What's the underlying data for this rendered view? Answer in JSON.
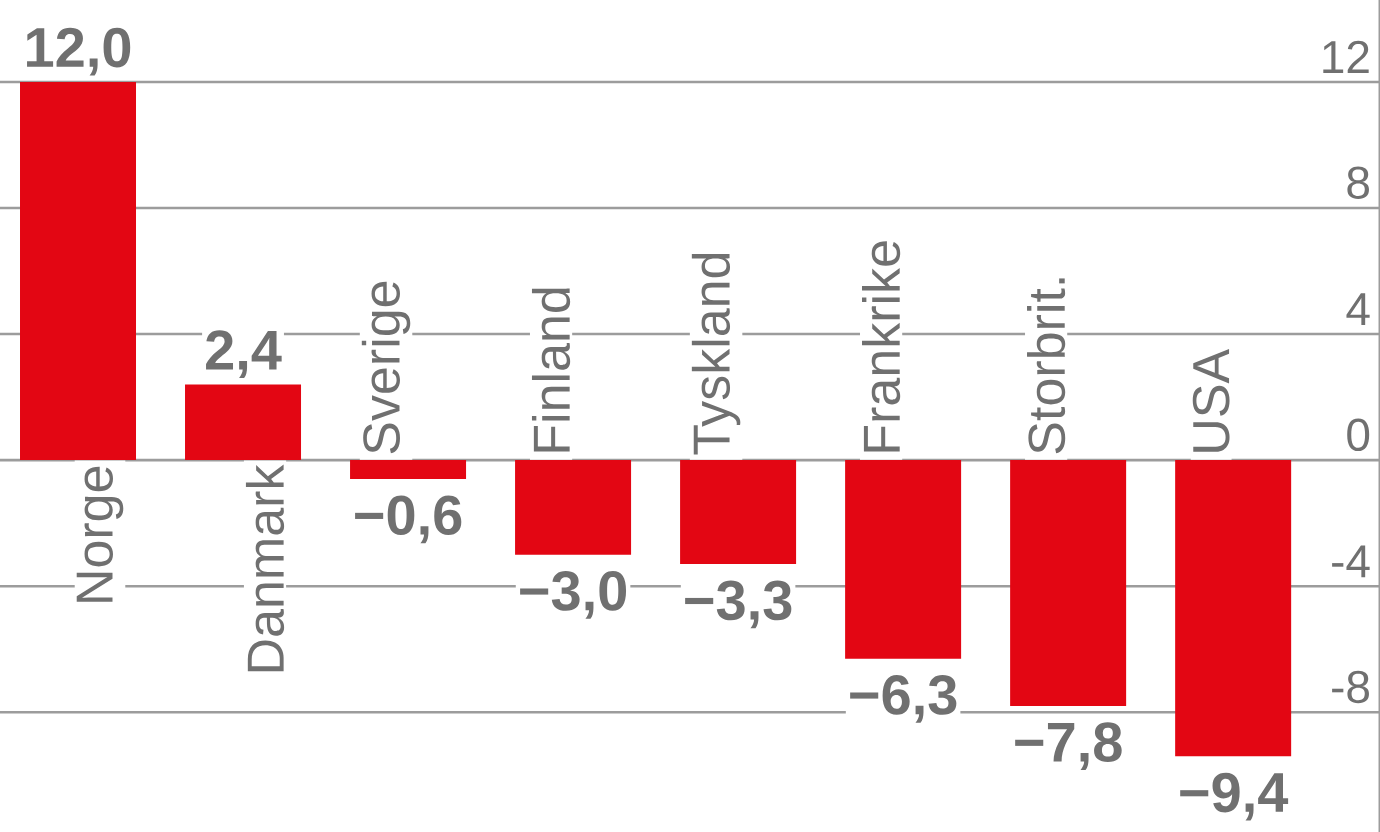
{
  "chart_data": {
    "type": "bar",
    "categories": [
      "Norge",
      "Danmark",
      "Sverige",
      "Finland",
      "Tyskland",
      "Frankrike",
      "Storbrit.",
      "USA"
    ],
    "values": [
      12.0,
      2.4,
      -0.6,
      -3.0,
      -3.3,
      -6.3,
      -7.8,
      -9.4
    ],
    "value_labels": [
      "12,0",
      "2,4",
      "−0,6",
      "−3,0",
      "−3,3",
      "−6,3",
      "−7,8",
      "−9,4"
    ],
    "color": "#e30613",
    "ylim": [
      -11.8,
      14.6
    ],
    "yticks": [
      -8,
      -4,
      0,
      4,
      8,
      12
    ],
    "grid": "y"
  }
}
